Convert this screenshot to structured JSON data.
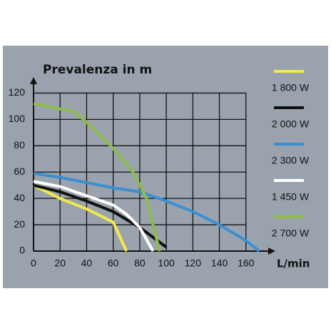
{
  "chart_data": {
    "type": "line",
    "title": "Prevalenza in m",
    "x_label": "L/min",
    "xlim": [
      0,
      180
    ],
    "ylim": [
      0,
      130
    ],
    "xticks": [
      0,
      20,
      40,
      60,
      80,
      100,
      120,
      140,
      160
    ],
    "yticks": [
      0,
      20,
      40,
      60,
      80,
      100,
      120
    ],
    "grid": true,
    "series": [
      {
        "name": "1 800 W",
        "color": "#f3e94c",
        "x": [
          0,
          20,
          40,
          60,
          70
        ],
        "values": [
          50,
          40,
          32,
          22,
          0
        ]
      },
      {
        "name": "2 000 W",
        "color": "#111111",
        "x": [
          0,
          20,
          40,
          60,
          80,
          100
        ],
        "values": [
          50,
          45,
          38,
          30,
          18,
          3
        ]
      },
      {
        "name": "2 300 W",
        "color": "#3a8fd2",
        "x": [
          0,
          20,
          40,
          60,
          80,
          100,
          120,
          140,
          160,
          170
        ],
        "values": [
          59,
          56,
          52,
          48,
          45,
          38,
          30,
          20,
          8,
          0
        ]
      },
      {
        "name": "1 450 W",
        "color": "#ffffff",
        "x": [
          0,
          20,
          40,
          60,
          70,
          80,
          90
        ],
        "values": [
          53,
          49,
          42,
          35,
          28,
          18,
          0
        ]
      },
      {
        "name": "2 700 W",
        "color": "#8cbd4b",
        "x": [
          0,
          30,
          40,
          60,
          75,
          85,
          90,
          95
        ],
        "values": [
          112,
          106,
          98,
          78,
          60,
          40,
          20,
          0
        ]
      }
    ]
  }
}
